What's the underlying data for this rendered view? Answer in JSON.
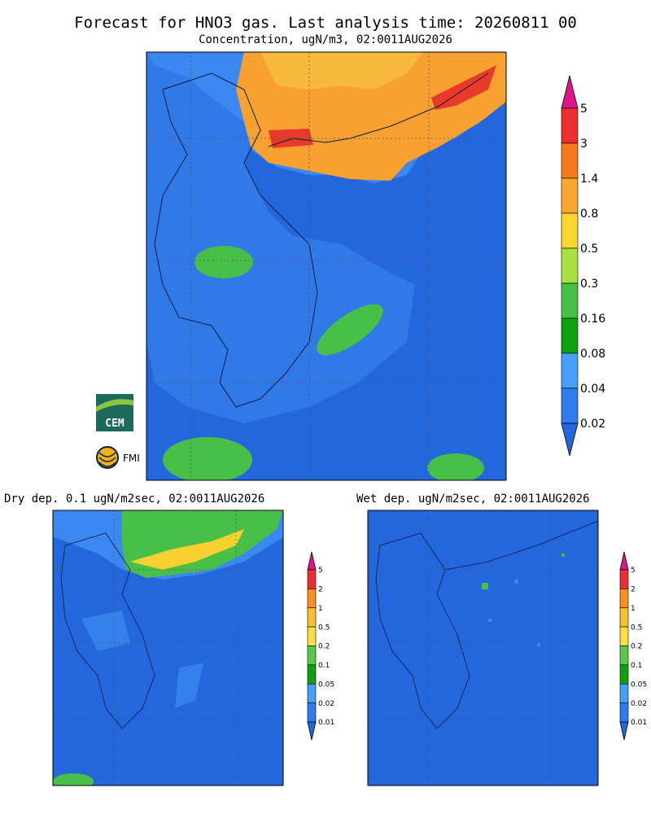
{
  "header": {
    "title": "Forecast for HNO3 gas. Last analysis time: 20260811 00",
    "subtitle": "Concentration, ugN/m3, 02:0011AUG2026"
  },
  "main_colorbar": {
    "labels": [
      "5",
      "3",
      "1.4",
      "0.8",
      "0.5",
      "0.3",
      "0.16",
      "0.08",
      "0.04",
      "0.02"
    ]
  },
  "logos": {
    "cem": "CEM",
    "fmi": "FMI"
  },
  "panels": [
    {
      "title": "Dry dep. 0.1 ugN/m2sec, 02:0011AUG2026",
      "colorbar": {
        "labels": [
          "5",
          "2",
          "1",
          "0.5",
          "0.2",
          "0.1",
          "0.05",
          "0.02",
          "0.01"
        ]
      }
    },
    {
      "title": "Wet dep. ugN/m2sec, 02:0011AUG2026",
      "colorbar": {
        "labels": [
          "5",
          "2",
          "1",
          "0.5",
          "0.2",
          "0.1",
          "0.05",
          "0.02",
          "0.01"
        ]
      }
    }
  ]
}
